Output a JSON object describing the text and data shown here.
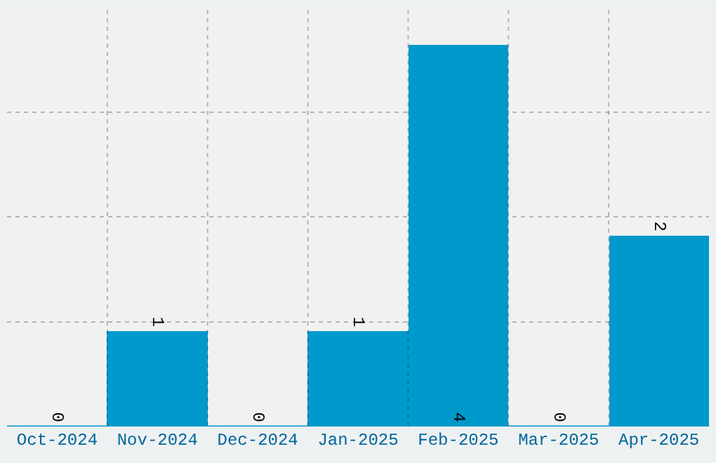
{
  "chart_data": {
    "type": "bar",
    "categories": [
      "Oct-2024",
      "Nov-2024",
      "Dec-2024",
      "Jan-2025",
      "Feb-2025",
      "Mar-2025",
      "Apr-2025"
    ],
    "values": [
      0,
      1,
      0,
      1,
      4,
      0,
      2
    ],
    "color": "#0099cc",
    "ylim": [
      0,
      4.4
    ],
    "yticks": [
      {
        "value": 1.1,
        "label": null
      },
      {
        "value": 2.2,
        "label": null
      },
      {
        "value": 3.3,
        "label": null
      }
    ],
    "tick_labels": "x",
    "data_labels": true,
    "grid": true
  }
}
